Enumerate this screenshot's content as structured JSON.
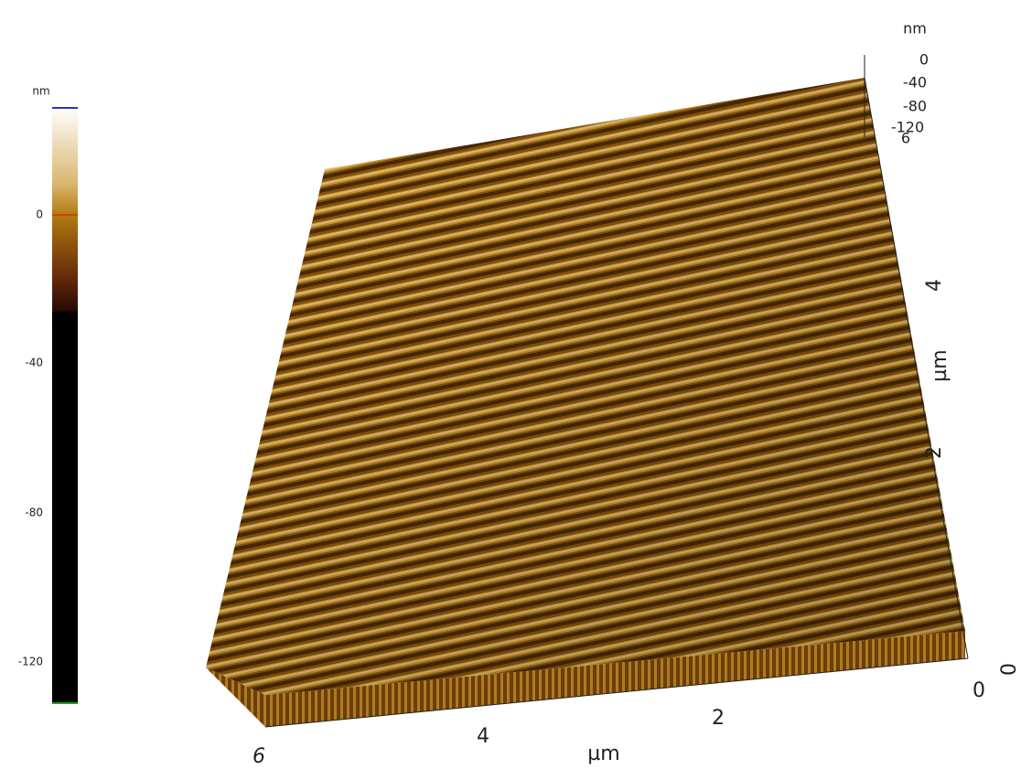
{
  "colorbar": {
    "unit": "nm",
    "ticks": [
      "0",
      "-40",
      "-80",
      "-120"
    ]
  },
  "z_axis": {
    "unit": "nm",
    "ticks": [
      "0",
      "-40",
      "-80",
      "-120"
    ]
  },
  "y_axis": {
    "unit": "µm",
    "ticks": [
      "6",
      "4",
      "2",
      "0"
    ]
  },
  "x_axis": {
    "unit": "µm",
    "ticks": [
      "6",
      "4",
      "2",
      "0"
    ]
  }
}
